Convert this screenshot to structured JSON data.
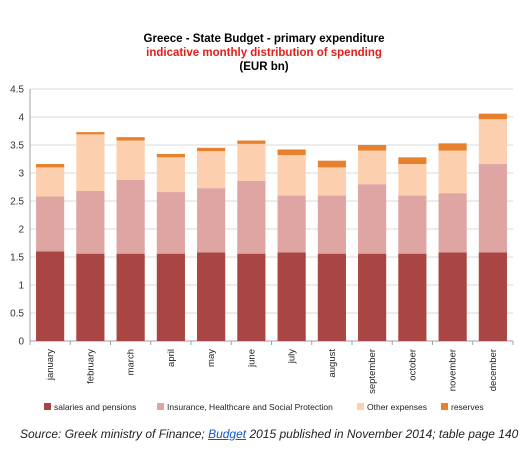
{
  "chart_data": {
    "type": "bar",
    "stacked": true,
    "title": "Greece - State Budget - primary expenditure",
    "subtitle": "indicative monthly distribution of spending",
    "unit_label": "(EUR bn)",
    "categories": [
      "january",
      "february",
      "march",
      "april",
      "may",
      "june",
      "july",
      "august",
      "september",
      "october",
      "november",
      "december"
    ],
    "series": [
      {
        "name": "salaries and pensions",
        "color": "#a94543",
        "values": [
          1.6,
          1.56,
          1.56,
          1.56,
          1.58,
          1.56,
          1.58,
          1.56,
          1.56,
          1.56,
          1.58,
          1.58
        ]
      },
      {
        "name": "Insurance, Healthcare and Social Protection",
        "color": "#dfa5a3",
        "values": [
          0.98,
          1.12,
          1.32,
          1.1,
          1.15,
          1.3,
          1.02,
          1.04,
          1.24,
          1.04,
          1.06,
          1.58
        ]
      },
      {
        "name": "Other expenses",
        "color": "#fcd0ae",
        "values": [
          0.52,
          1.01,
          0.7,
          0.62,
          0.66,
          0.66,
          0.72,
          0.5,
          0.6,
          0.56,
          0.76,
          0.8
        ]
      },
      {
        "name": "reserves",
        "color": "#e8812d",
        "values": [
          0.06,
          0.04,
          0.06,
          0.06,
          0.06,
          0.06,
          0.1,
          0.12,
          0.1,
          0.12,
          0.13,
          0.1
        ]
      }
    ],
    "ylim": [
      0,
      4.5
    ],
    "yticks": [
      "0",
      "0.5",
      "1",
      "1.5",
      "2",
      "2.5",
      "3",
      "3.5",
      "4",
      "4.5"
    ],
    "grid": true,
    "legend_position": "bottom"
  },
  "source": {
    "prefix": "Source: Greek ministry of Finance; ",
    "link_text": "Budget",
    "suffix": " 2015 published in November 2014; table page 140"
  },
  "colors": {
    "subtitle": "#e0201a",
    "grid": "#d9d9d9",
    "axis": "#a0a0a0"
  }
}
